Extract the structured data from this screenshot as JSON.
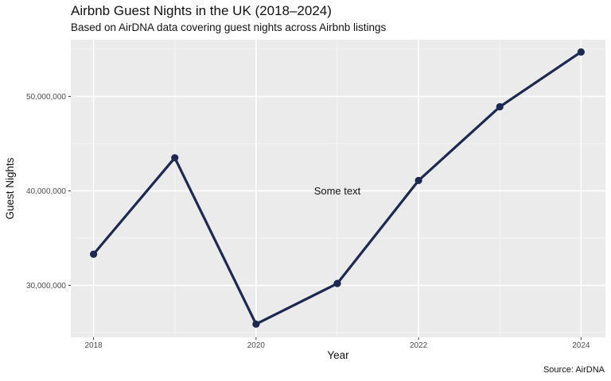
{
  "chart_data": {
    "type": "line",
    "title": "Airbnb Guest Nights in the UK (2018–2024)",
    "subtitle": "Based on AirDNA data covering guest nights across Airbnb listings",
    "caption": "Source: AirDNA",
    "xlabel": "Year",
    "ylabel": "Guest Nights",
    "x": [
      2018,
      2019,
      2020,
      2021,
      2022,
      2023,
      2024
    ],
    "series": [
      {
        "values": [
          33300000,
          43500000,
          25900000,
          30200000,
          41100000,
          48900000,
          54700000
        ]
      }
    ],
    "x_ticks": [
      2018,
      2020,
      2022,
      2024
    ],
    "x_tick_labels": [
      "2018",
      "2020",
      "2022",
      "2024"
    ],
    "y_ticks": [
      30000000,
      40000000,
      50000000
    ],
    "y_tick_labels": [
      "30,000,000",
      "40,000,000",
      "50,000,000"
    ],
    "xlim": [
      2017.72,
      2024.3
    ],
    "ylim": [
      24500000,
      56000000
    ],
    "annotations": [
      {
        "text": "Some text",
        "x": 2021,
        "y": 40000000
      }
    ],
    "grid": true,
    "legend": "none",
    "colors": {
      "line": "#1c2951",
      "panel": "#ebebeb",
      "grid_major": "#ffffff",
      "grid_minor": "#f5f5f5"
    }
  }
}
